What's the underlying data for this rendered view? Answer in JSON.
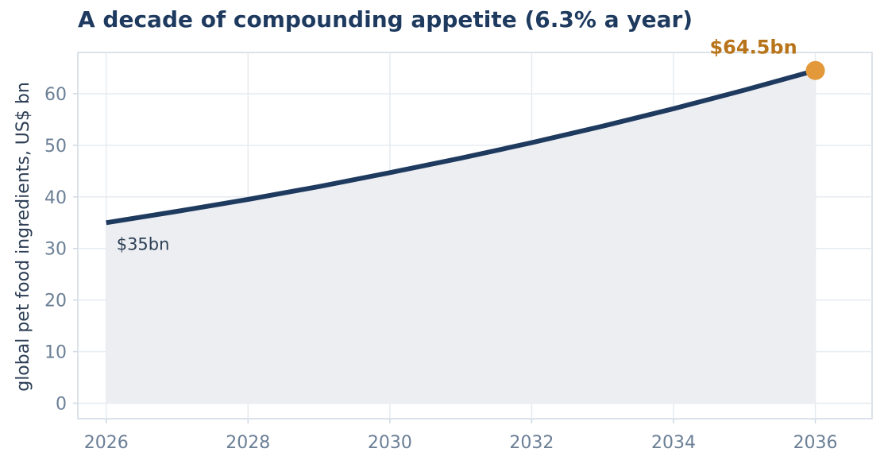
{
  "chart_data": {
    "type": "area",
    "title": "A decade of compounding appetite (6.3% a year)",
    "xlabel": "",
    "ylabel": "global pet food ingredients, US$ bn",
    "x": [
      2026,
      2027,
      2028,
      2029,
      2030,
      2031,
      2032,
      2033,
      2034,
      2035,
      2036
    ],
    "series": [
      {
        "values": [
          35.0,
          37.2,
          39.5,
          42.0,
          44.7,
          47.5,
          50.5,
          53.7,
          57.1,
          60.7,
          64.5
        ]
      }
    ],
    "xlim": [
      2025.6,
      2036.8
    ],
    "ylim": [
      -3,
      68
    ],
    "xticks": [
      2026,
      2028,
      2030,
      2032,
      2034,
      2036
    ],
    "xtick_labels": [
      "2026",
      "2028",
      "2030",
      "2032",
      "2034",
      "2036"
    ],
    "yticks": [
      0,
      10,
      20,
      30,
      40,
      50,
      60
    ],
    "ytick_labels": [
      "0",
      "10",
      "20",
      "30",
      "40",
      "50",
      "60"
    ],
    "grid": true,
    "annotations": {
      "start_label": "$35bn",
      "end_label": "$64.5bn"
    },
    "colors": {
      "line": "#1e3a5f",
      "fill": "#eceef2",
      "end_marker": "#e3993a",
      "end_label": "#b8741a",
      "grid": "#e6ebf0",
      "frame": "#cfd8e2"
    }
  }
}
